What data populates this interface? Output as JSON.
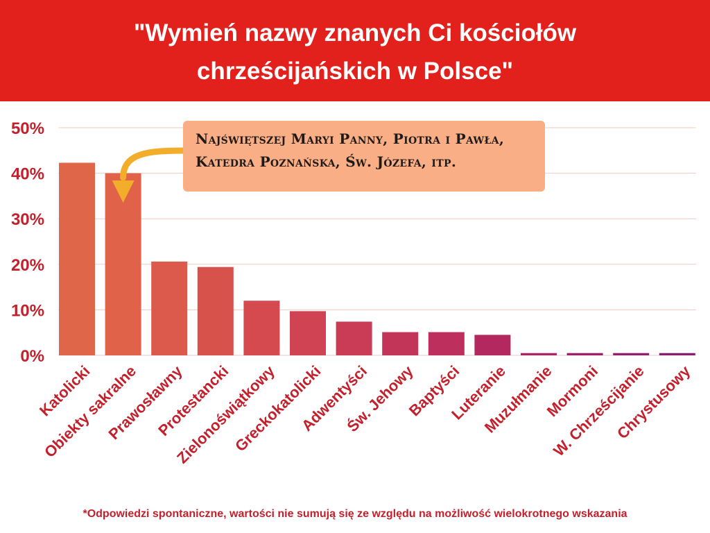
{
  "header": {
    "title": "\"Wymień nazwy znanych Ci kościołów\nchrześcijańskich w Polsce\""
  },
  "annotation": {
    "text": "Najświętszej Maryi Panny, Piotra i Pawła, Katedra Poznańska, Św. Józefa, itp.",
    "target_category": "Obiekty sakralne",
    "arrow_color": "#f2ae2a",
    "box_color": "#f9ae85"
  },
  "footnote": "*Odpowiedzi spontaniczne, wartości nie sumują się ze względu na możliwość wielokrotnego wskazania",
  "colors": {
    "header_bg": "#e2211c",
    "tick_label": "#c3202c",
    "category_label": "#c3202c",
    "grid": "#f2c9c0"
  },
  "chart_data": {
    "type": "bar",
    "title": "\"Wymień nazwy znanych Ci kościołów chrześcijańskich w Polsce\"",
    "xlabel": "",
    "ylabel": "",
    "ylim": [
      0,
      50
    ],
    "yticks": [
      0,
      10,
      20,
      30,
      40,
      50
    ],
    "ytick_labels": [
      "0%",
      "10%",
      "20%",
      "30%",
      "40%",
      "50%"
    ],
    "grid": true,
    "categories": [
      "Katolicki",
      "Obiekty sakralne",
      "Prawosławny",
      "Protestancki",
      "Zielonoświątkowy",
      "Greckokatolicki",
      "Adwentyści",
      "Św. Jehowy",
      "Baptyści",
      "Luteranie",
      "Muzułmanie",
      "Mormoni",
      "W. Chrześcijanie",
      "Chrystusowy"
    ],
    "values": [
      42.3,
      40.0,
      20.6,
      19.4,
      12.0,
      9.7,
      7.4,
      5.1,
      5.1,
      4.5,
      0.5,
      0.5,
      0.5,
      0.5
    ],
    "bar_colors": [
      "#e06649",
      "#df6249",
      "#dc5a4b",
      "#d8524c",
      "#d44a4f",
      "#cf4352",
      "#ca3c55",
      "#c33558",
      "#bd2f5c",
      "#b3285f",
      "#a82564",
      "#9c2268",
      "#8f206a",
      "#84206d"
    ]
  }
}
